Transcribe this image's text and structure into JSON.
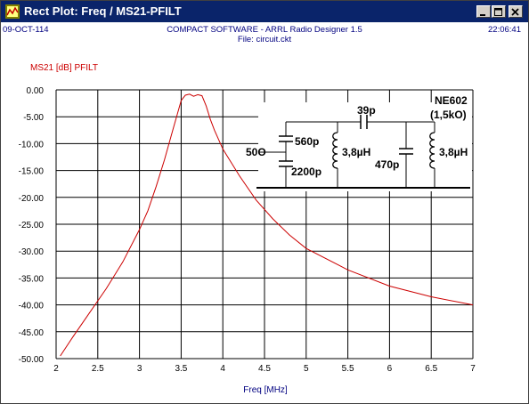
{
  "window": {
    "title": "Rect Plot: Freq / MS21-PFILT",
    "buttons": [
      "minimize",
      "maximize",
      "close"
    ],
    "title_color": "#0a246a"
  },
  "header": {
    "date": "09-OCT-114",
    "program": "COMPACT SOFTWARE - ARRL Radio Designer 1.5",
    "file": "File: circuit.ckt",
    "time": "22:06:41"
  },
  "icons": {
    "app": "plot-app-icon",
    "minimize": "minimize-icon",
    "maximize": "maximize-icon",
    "close": "close-icon"
  },
  "chart_data": {
    "type": "line",
    "title": "",
    "xlabel": "Freq [MHz]",
    "ylabel": "",
    "xlim": [
      2,
      7
    ],
    "ylim": [
      -50,
      0
    ],
    "xticks": [
      "2",
      "2.5",
      "3",
      "3.5",
      "4",
      "4.5",
      "5",
      "5.5",
      "6",
      "6.5",
      "7"
    ],
    "yticks": [
      "0.00",
      "-5.00",
      "-10.00",
      "-15.00",
      "-20.00",
      "-25.00",
      "-30.00",
      "-35.00",
      "-40.00",
      "-45.00",
      "-50.00"
    ],
    "grid": true,
    "series": [
      {
        "name": "MS21 [dB] PFILT",
        "color": "#cc0000",
        "x": [
          2.05,
          2.2,
          2.4,
          2.6,
          2.8,
          3.0,
          3.1,
          3.2,
          3.3,
          3.4,
          3.5,
          3.55,
          3.6,
          3.65,
          3.7,
          3.75,
          3.8,
          3.85,
          3.9,
          4.0,
          4.2,
          4.4,
          4.6,
          4.8,
          5.0,
          5.5,
          6.0,
          6.5,
          7.0
        ],
        "y": [
          -49.5,
          -46,
          -41.5,
          -37,
          -32,
          -26,
          -22.5,
          -18,
          -13,
          -7.5,
          -2,
          -1,
          -0.8,
          -1.2,
          -0.9,
          -1.1,
          -3,
          -5.5,
          -7.5,
          -11,
          -16,
          -20.5,
          -24,
          -27,
          -29.5,
          -33.5,
          -36.5,
          -38.5,
          -40
        ]
      }
    ]
  },
  "circuit": {
    "labels": {
      "cap_top": "39p",
      "device": "NE602",
      "device_impedance": "(1,5kO)",
      "source": "50O",
      "cap_series1": "560p",
      "cap_shunt1": "2200p",
      "inductor1": "3,8µH",
      "cap_shunt2": "470p",
      "inductor2": "3,8µH"
    }
  }
}
